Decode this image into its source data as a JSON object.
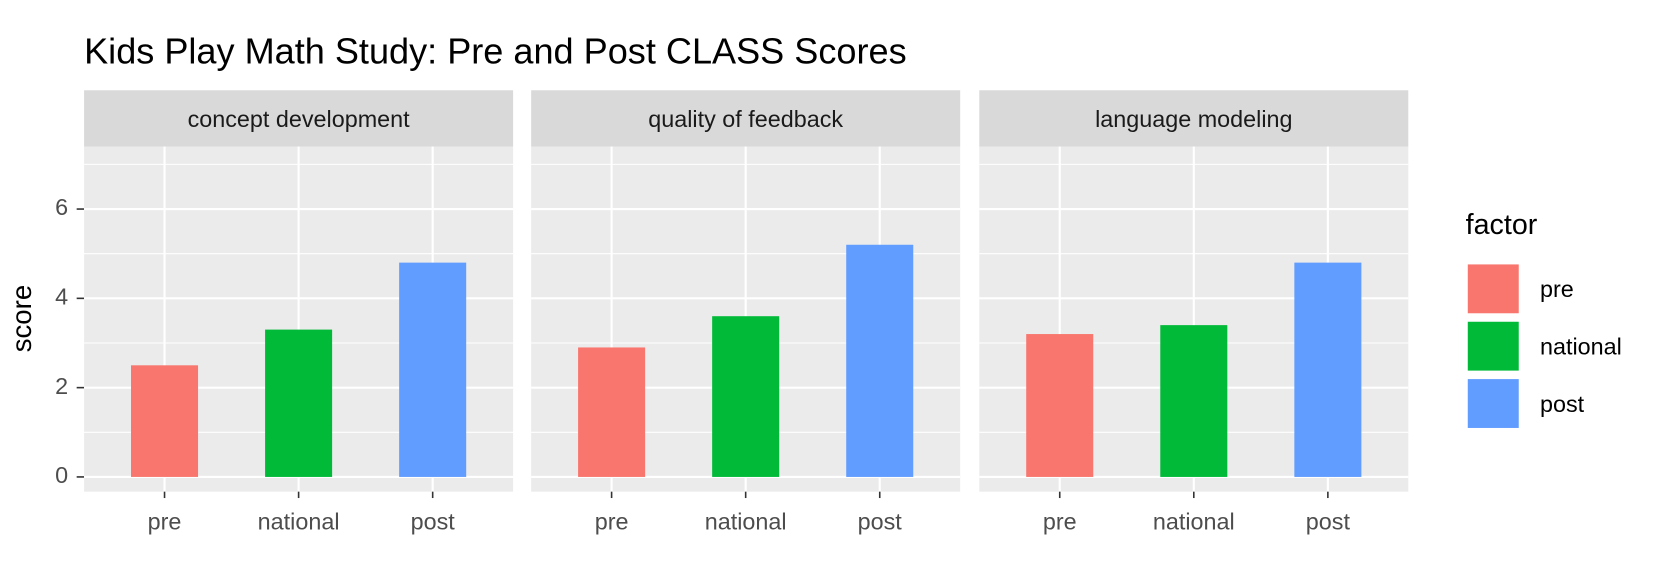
{
  "chart_data": {
    "type": "bar",
    "title": "Kids Play Math Study: Pre and Post CLASS Scores",
    "y_label": "score",
    "legend_title": "factor",
    "categories": [
      "pre",
      "national",
      "post"
    ],
    "colors": [
      "#f8766d",
      "#00ba38",
      "#619cff"
    ],
    "facets": [
      {
        "title": "concept development",
        "values": [
          2.5,
          3.3,
          4.8
        ]
      },
      {
        "title": "quality of feedback",
        "values": [
          2.9,
          3.6,
          5.2
        ]
      },
      {
        "title": "language modeling",
        "values": [
          3.2,
          3.4,
          4.8
        ]
      }
    ],
    "ylim": [
      -0.33,
      7.4
    ],
    "yticks": [
      0,
      2,
      4,
      6
    ],
    "minor_yticks": [
      1,
      3,
      5,
      7
    ],
    "grid": true
  }
}
